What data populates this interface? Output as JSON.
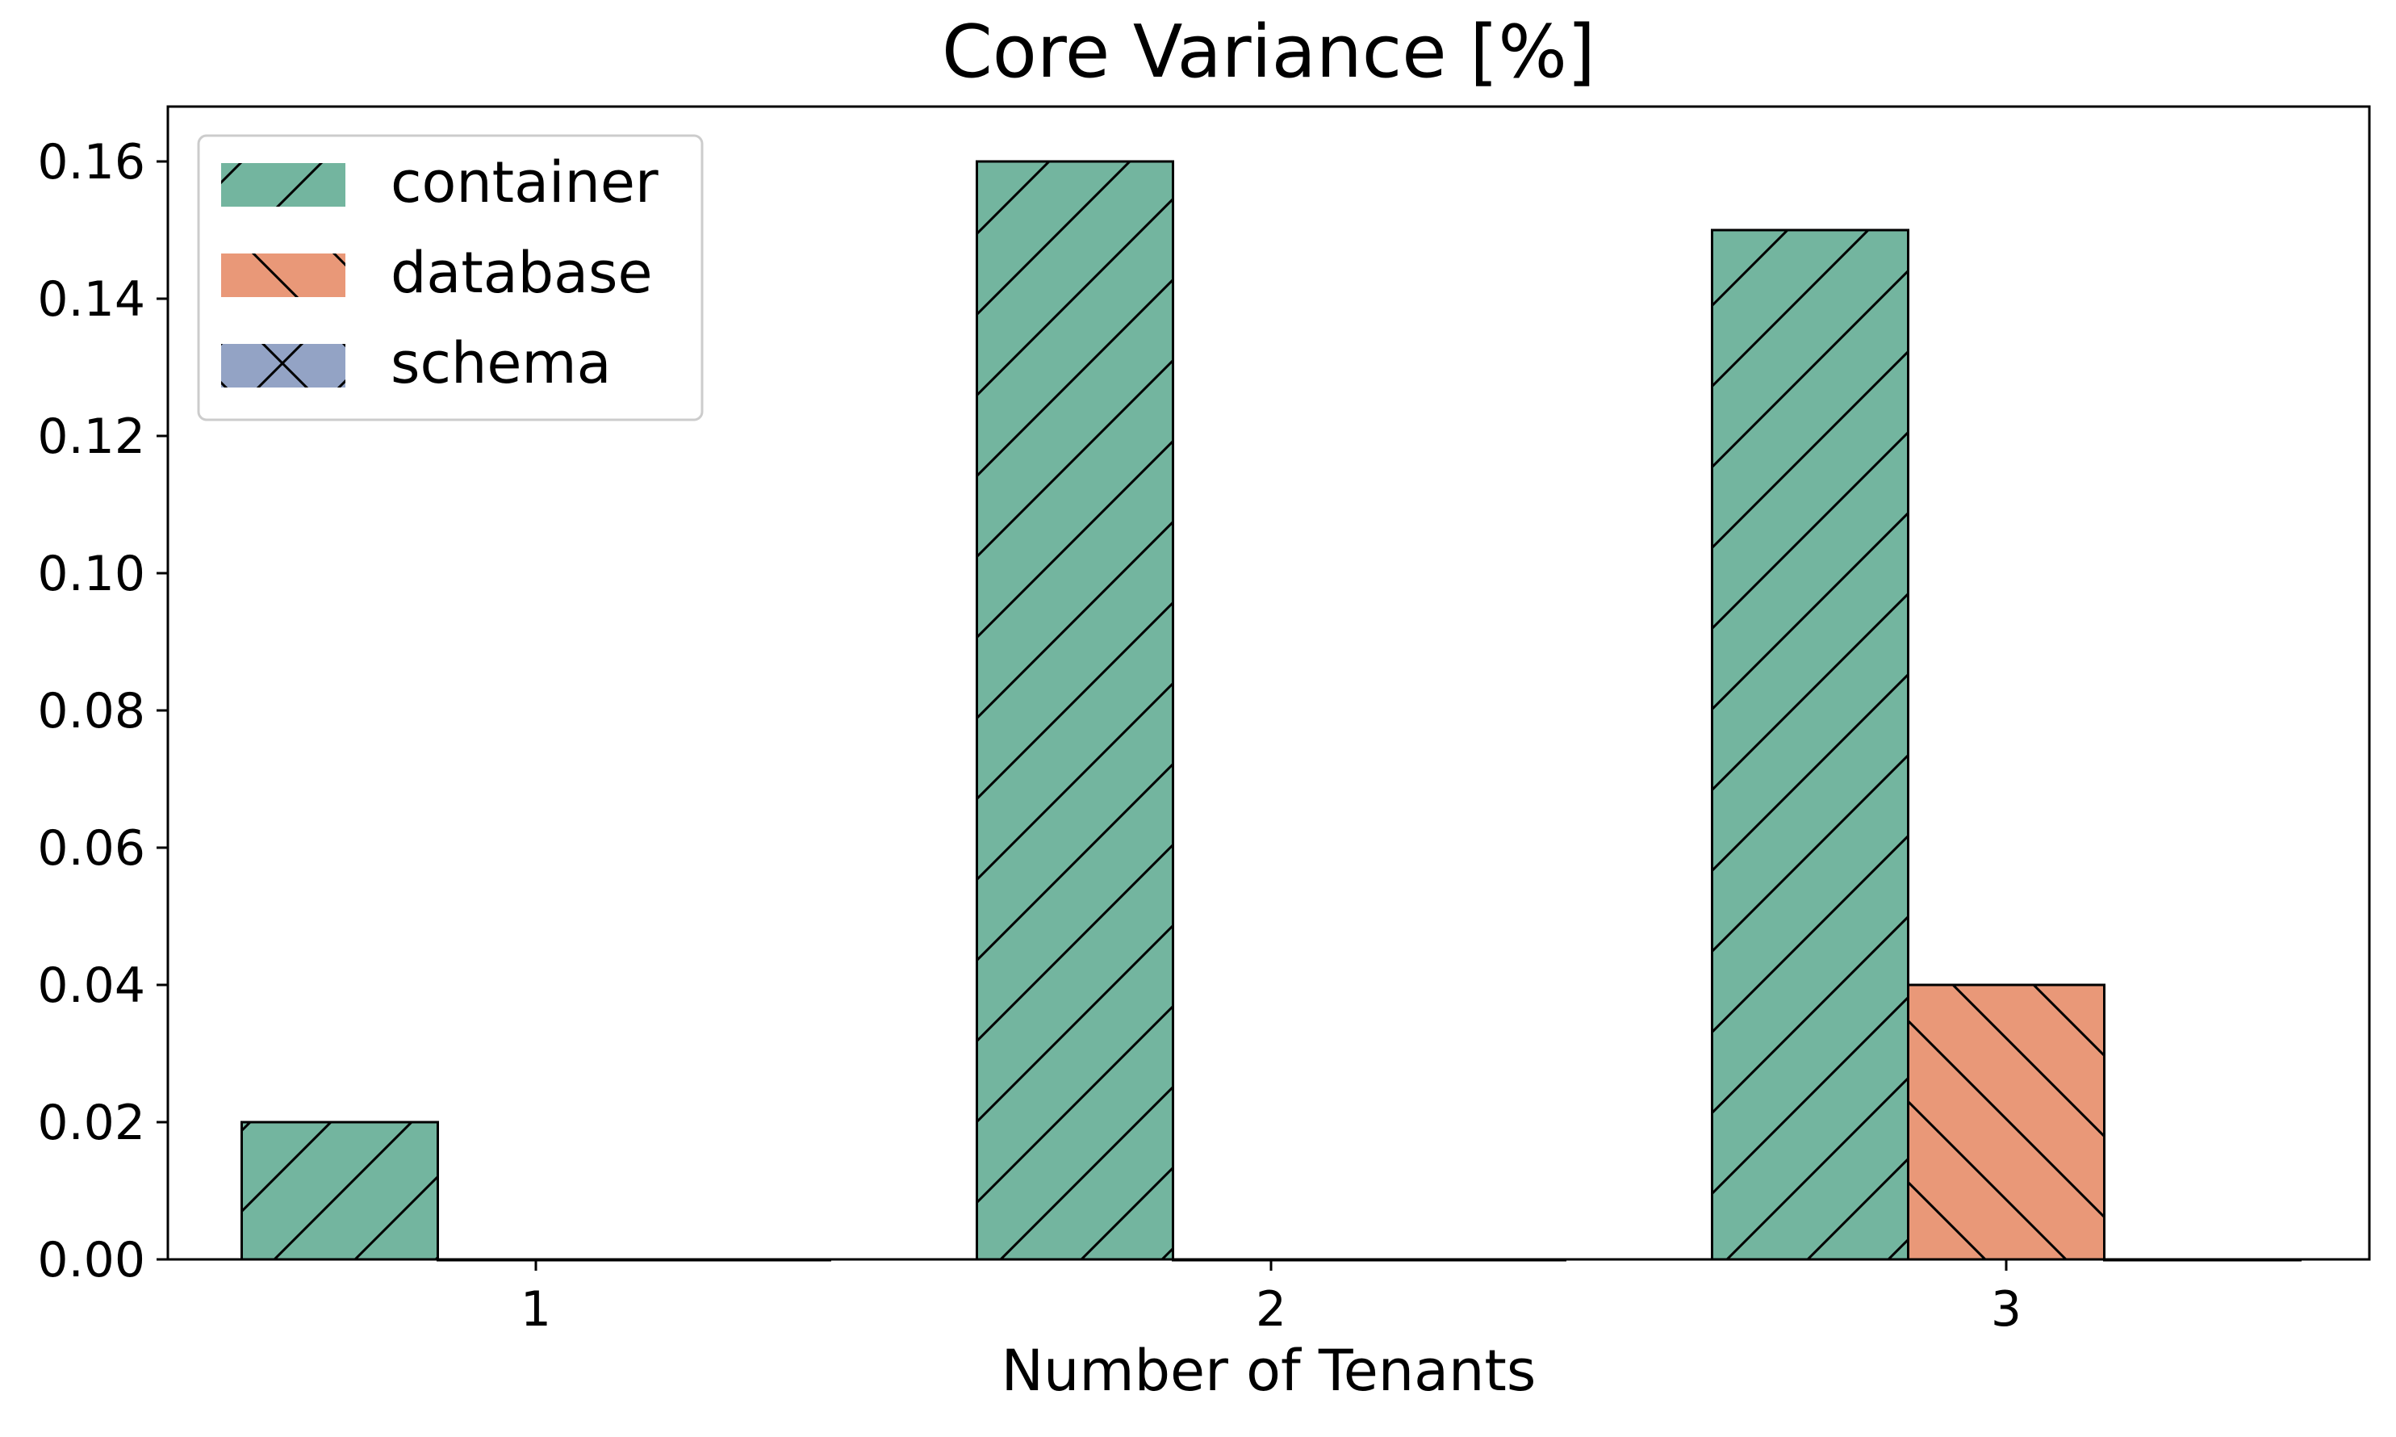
{
  "chart_data": {
    "type": "bar",
    "title": "Core Variance [%]",
    "xlabel": "Number of Tenants",
    "ylabel": "",
    "categories": [
      "1",
      "2",
      "3"
    ],
    "ylim": [
      0,
      0.168
    ],
    "yticks": [
      0.0,
      0.02,
      0.04,
      0.06,
      0.08,
      0.1,
      0.12,
      0.14,
      0.16
    ],
    "ytick_labels": [
      "0.00",
      "0.02",
      "0.04",
      "0.06",
      "0.08",
      "0.10",
      "0.12",
      "0.14",
      "0.16"
    ],
    "grid": false,
    "legend_position": "top-left",
    "series": [
      {
        "name": "container",
        "values": [
          0.02,
          0.16,
          0.15
        ],
        "color": "#73b59f",
        "hatch": "slash"
      },
      {
        "name": "database",
        "values": [
          0.0,
          0.0,
          0.04
        ],
        "color": "#e99878",
        "hatch": "backslash"
      },
      {
        "name": "schema",
        "values": [
          0.0,
          0.0,
          0.0
        ],
        "color": "#93a3c5",
        "hatch": "cross"
      }
    ]
  }
}
